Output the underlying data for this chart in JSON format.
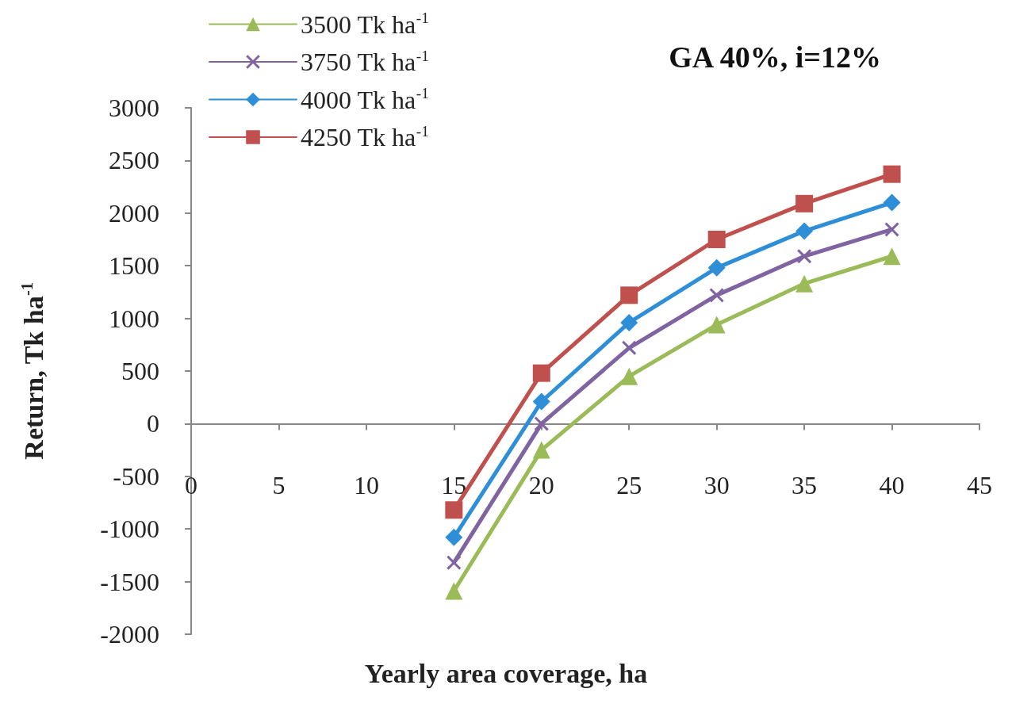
{
  "chart_data": {
    "type": "line",
    "title": "GA 40%, i=12%",
    "xlabel": "Yearly area coverage, ha",
    "ylabel": "Return, Tk ha$^{-1}$",
    "x": [
      15,
      20,
      25,
      30,
      35,
      40
    ],
    "series": [
      {
        "name": "3500 Tk ha$^{-1}$",
        "color": "#9bbb59",
        "marker": "triangle",
        "values": [
          -1590,
          -250,
          450,
          940,
          1330,
          1590
        ]
      },
      {
        "name": "3750 Tk ha$^{-1}$",
        "color": "#8064a2",
        "marker": "cross",
        "values": [
          -1320,
          0,
          720,
          1220,
          1590,
          1845
        ]
      },
      {
        "name": "4000 Tk ha$^{-1}$",
        "color": "#2e8fd8",
        "marker": "diamond",
        "values": [
          -1080,
          210,
          960,
          1480,
          1830,
          2100
        ]
      },
      {
        "name": "4250 Tk ha$^{-1}$",
        "color": "#c0504d",
        "marker": "square",
        "values": [
          -820,
          480,
          1220,
          1750,
          2090,
          2370
        ]
      }
    ],
    "xlim": [
      0,
      45
    ],
    "xticks": [
      0,
      5,
      10,
      15,
      20,
      25,
      30,
      35,
      40,
      45
    ],
    "ylim": [
      -2000,
      3000
    ],
    "yticks": [
      -2000,
      -1500,
      -1000,
      -500,
      0,
      500,
      1000,
      1500,
      2000,
      2500,
      3000
    ],
    "grid": false,
    "legend": "top left",
    "line_style": "solid"
  }
}
